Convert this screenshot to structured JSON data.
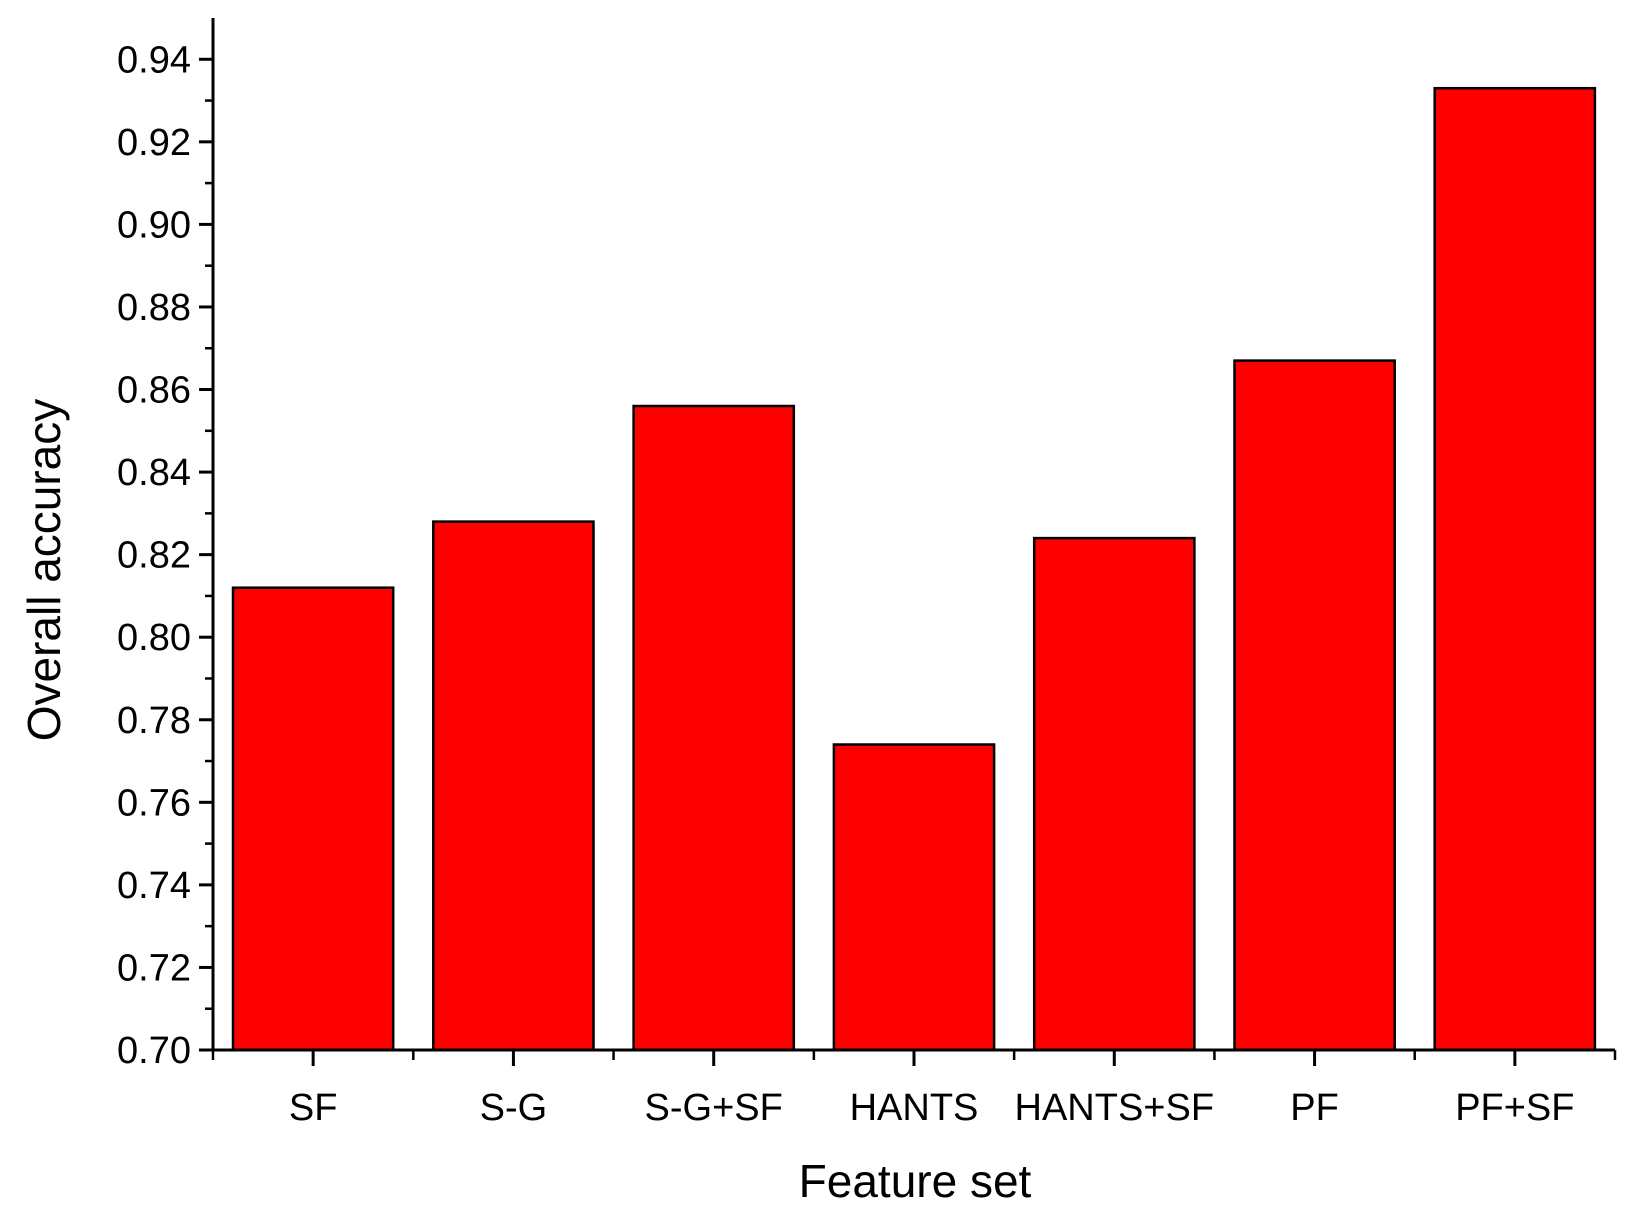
{
  "chart_data": {
    "type": "bar",
    "title": "",
    "xlabel": "Feature set",
    "ylabel": "Overall accuracy",
    "categories": [
      "SF",
      "S-G",
      "S-G+SF",
      "HANTS",
      "HANTS+SF",
      "PF",
      "PF+SF"
    ],
    "values": [
      0.812,
      0.828,
      0.856,
      0.774,
      0.824,
      0.867,
      0.933
    ],
    "ylim": [
      0.7,
      0.95
    ],
    "yticks": [
      "0.70",
      "0.72",
      "0.74",
      "0.76",
      "0.78",
      "0.80",
      "0.82",
      "0.84",
      "0.86",
      "0.88",
      "0.90",
      "0.92",
      "0.94"
    ],
    "bar_color": "#ff0000",
    "bar_edge_color": "#000000",
    "grid": false,
    "legend": "none"
  }
}
